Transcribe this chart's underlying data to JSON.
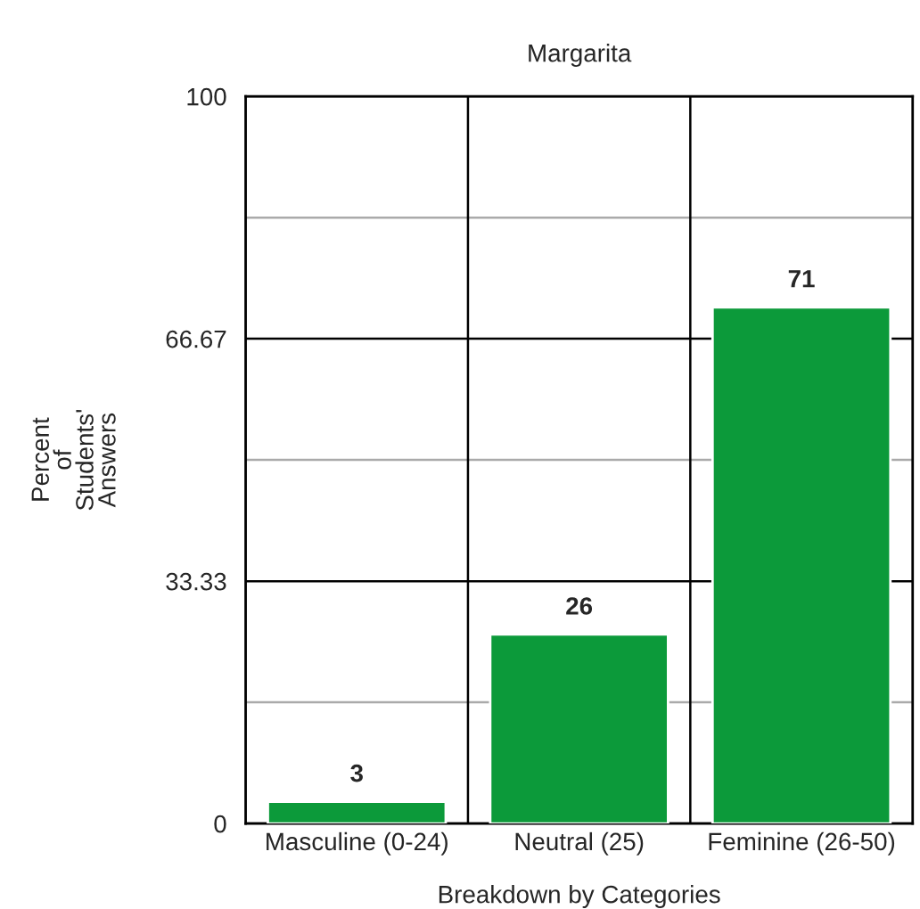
{
  "chart_data": {
    "type": "bar",
    "title": "Margarita",
    "xlabel": "Breakdown by Categories",
    "ylabel": "Percent\nof\nStudents'\nAnswers",
    "categories": [
      "Masculine (0-24)",
      "Neutral (25)",
      "Feminine (26-50)"
    ],
    "values": [
      3,
      26,
      71
    ],
    "color": "#0c9a3a",
    "data_labels": true,
    "ylim": [
      0,
      100
    ],
    "yticks": [
      0,
      {
        "value": 16.67,
        "label": null
      },
      {
        "value": 33.33,
        "label": "33.33"
      },
      {
        "value": 50,
        "label": null
      },
      {
        "value": 66.67,
        "label": "66.67"
      },
      {
        "value": 83.33,
        "label": null
      },
      100
    ],
    "grid": true,
    "legend": false
  }
}
